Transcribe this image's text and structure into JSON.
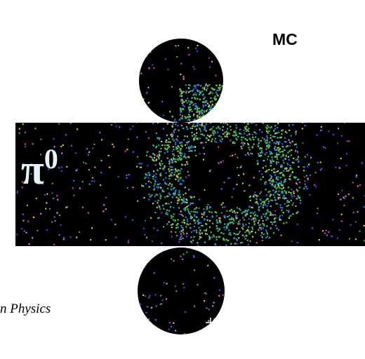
{
  "labels": {
    "mc": "MC",
    "particle": "π",
    "particle_superscript": "0",
    "caption_fragment": "n Physics"
  }
}
